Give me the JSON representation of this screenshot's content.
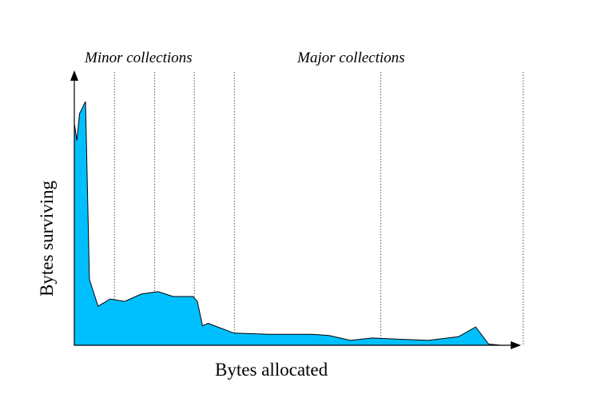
{
  "chart_data": {
    "type": "area",
    "title": "",
    "xlabel": "Bytes allocated",
    "ylabel": "Bytes surviving",
    "annotations": {
      "minor_label": "Minor collections",
      "major_label": "Major collections"
    },
    "minor_collections_x": [
      0.093,
      0.186,
      0.278,
      0.371
    ],
    "major_collections_x": [
      0.71,
      1.04
    ],
    "series": [
      {
        "color": "#00bfff",
        "x": [
          0.0,
          0.006,
          0.012,
          0.026,
          0.035,
          0.055,
          0.083,
          0.117,
          0.155,
          0.194,
          0.229,
          0.275,
          0.285,
          0.297,
          0.31,
          0.37,
          0.45,
          0.55,
          0.59,
          0.64,
          0.69,
          0.75,
          0.82,
          0.89,
          0.93,
          0.96,
          0.99
        ],
        "y": [
          0.91,
          0.84,
          0.95,
          1.0,
          0.27,
          0.16,
          0.19,
          0.18,
          0.21,
          0.22,
          0.2,
          0.2,
          0.18,
          0.08,
          0.09,
          0.05,
          0.045,
          0.045,
          0.04,
          0.02,
          0.03,
          0.025,
          0.02,
          0.035,
          0.075,
          0.005,
          0.0
        ]
      }
    ],
    "xlim": [
      0,
      1.08
    ],
    "ylim": [
      0,
      1.1
    ],
    "grid": false
  }
}
